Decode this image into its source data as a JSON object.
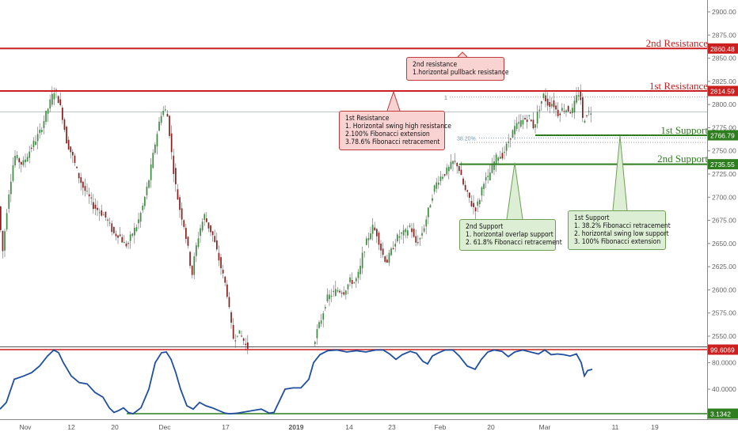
{
  "chart_data": {
    "type": "candlestick",
    "price_axis": {
      "range": [
        2530,
        2915
      ],
      "ticks": [
        2550,
        2575,
        2600,
        2625,
        2650,
        2675,
        2700,
        2725,
        2750,
        2775,
        2800,
        2825,
        2850,
        2875,
        2900
      ],
      "tick_labels": [
        "2550.00",
        "2575.00",
        "2600.00",
        "2625.00",
        "2650.00",
        "2675.00",
        "2700.00",
        "2725.00",
        "2750.00",
        "2775.00",
        "2800.00",
        "2825.00",
        "2850.00",
        "2875.00",
        "2900.00"
      ]
    },
    "oscillator_axis": {
      "range": [
        0,
        105
      ],
      "ticks": [
        40,
        80
      ],
      "tick_labels": [
        "40.0000",
        "80.0000"
      ]
    },
    "x_axis_labels": [
      "Nov",
      "12",
      "20",
      "Dec",
      "17",
      "2019",
      "14",
      "23",
      "Feb",
      "20",
      "Mar",
      "11",
      "19"
    ],
    "levels": [
      {
        "name": "2nd Resistance",
        "value": 2860.48,
        "value_label": "2860.48",
        "color": "#cc1f1f"
      },
      {
        "name": "1st Resistance",
        "value": 2814.59,
        "value_label": "2814.59",
        "color": "#cc1f1f"
      },
      {
        "name": "1st Support",
        "value": 2766.79,
        "value_label": "2766.79",
        "color": "#2e7d1e"
      },
      {
        "name": "2nd Support",
        "value": 2735.55,
        "value_label": "2735.55",
        "color": "#2e7d1e"
      }
    ],
    "oscillator_levels": [
      {
        "value": 99.6069,
        "value_label": "99.6069",
        "color": "#cc1f1f"
      },
      {
        "value": 3.1342,
        "value_label": "3.1342",
        "color": "#2e7d1e"
      }
    ],
    "fib_labels": {
      "fib_382": "38.20%",
      "fib_1": "1"
    },
    "callouts": {
      "second_resistance": [
        "2nd resistance",
        "1.horizontal pullback resistance"
      ],
      "first_resistance": [
        "1st Resistance",
        "1. Horizontal swing high resistance",
        "2.100% Fibonacci extension",
        "3.78.6% Fibonacci retracement"
      ],
      "second_support": [
        "2nd Support",
        "1. horizontal overlap support",
        "2. 61.8% Fibonacci retracement"
      ],
      "first_support": [
        "1st Support",
        "1.  38.2% Fibonacci retracement",
        "2. horizontal swing low support",
        "3. 100% Fibonacci extension"
      ]
    },
    "price_path": [
      [
        0,
        2690
      ],
      [
        5,
        2640
      ],
      [
        12,
        2700
      ],
      [
        20,
        2745
      ],
      [
        30,
        2735
      ],
      [
        42,
        2755
      ],
      [
        52,
        2770
      ],
      [
        60,
        2790
      ],
      [
        66,
        2805
      ],
      [
        70,
        2815
      ],
      [
        74,
        2810
      ],
      [
        80,
        2790
      ],
      [
        86,
        2760
      ],
      [
        93,
        2745
      ],
      [
        100,
        2725
      ],
      [
        107,
        2710
      ],
      [
        114,
        2700
      ],
      [
        120,
        2690
      ],
      [
        127,
        2685
      ],
      [
        134,
        2680
      ],
      [
        140,
        2670
      ],
      [
        146,
        2660
      ],
      [
        152,
        2660
      ],
      [
        158,
        2650
      ],
      [
        163,
        2648
      ],
      [
        168,
        2660
      ],
      [
        175,
        2670
      ],
      [
        182,
        2690
      ],
      [
        190,
        2720
      ],
      [
        198,
        2760
      ],
      [
        205,
        2790
      ],
      [
        210,
        2795
      ],
      [
        214,
        2785
      ],
      [
        218,
        2750
      ],
      [
        223,
        2715
      ],
      [
        228,
        2690
      ],
      [
        234,
        2670
      ],
      [
        240,
        2640
      ],
      [
        244,
        2615
      ],
      [
        248,
        2640
      ],
      [
        254,
        2665
      ],
      [
        260,
        2680
      ],
      [
        264,
        2670
      ],
      [
        270,
        2660
      ],
      [
        276,
        2640
      ],
      [
        282,
        2620
      ],
      [
        288,
        2600
      ],
      [
        293,
        2565
      ],
      [
        297,
        2545
      ],
      [
        302,
        2555
      ],
      [
        308,
        2548
      ],
      [
        313,
        2538
      ]
    ],
    "price_path_2": [
      [
        397,
        2540
      ],
      [
        402,
        2555
      ],
      [
        408,
        2570
      ],
      [
        414,
        2590
      ],
      [
        420,
        2595
      ],
      [
        428,
        2600
      ],
      [
        436,
        2598
      ],
      [
        444,
        2610
      ],
      [
        450,
        2608
      ],
      [
        456,
        2620
      ],
      [
        460,
        2640
      ],
      [
        466,
        2655
      ],
      [
        472,
        2668
      ],
      [
        478,
        2660
      ],
      [
        484,
        2640
      ],
      [
        490,
        2630
      ],
      [
        496,
        2642
      ],
      [
        502,
        2655
      ],
      [
        508,
        2660
      ],
      [
        514,
        2662
      ],
      [
        520,
        2670
      ],
      [
        526,
        2650
      ],
      [
        532,
        2655
      ],
      [
        538,
        2670
      ],
      [
        544,
        2690
      ],
      [
        550,
        2710
      ],
      [
        556,
        2720
      ],
      [
        562,
        2725
      ],
      [
        568,
        2730
      ],
      [
        574,
        2738
      ],
      [
        580,
        2735
      ],
      [
        585,
        2718
      ],
      [
        590,
        2705
      ],
      [
        594,
        2700
      ],
      [
        598,
        2690
      ],
      [
        603,
        2688
      ],
      [
        608,
        2700
      ],
      [
        612,
        2718
      ],
      [
        618,
        2720
      ],
      [
        624,
        2735
      ],
      [
        630,
        2745
      ],
      [
        636,
        2745
      ],
      [
        640,
        2752
      ],
      [
        646,
        2765
      ],
      [
        652,
        2775
      ],
      [
        658,
        2780
      ],
      [
        664,
        2784
      ],
      [
        670,
        2786
      ],
      [
        676,
        2775
      ],
      [
        682,
        2795
      ],
      [
        688,
        2810
      ],
      [
        694,
        2800
      ],
      [
        700,
        2802
      ],
      [
        706,
        2790
      ],
      [
        712,
        2795
      ],
      [
        718,
        2795
      ],
      [
        724,
        2792
      ],
      [
        730,
        2808
      ],
      [
        734,
        2815
      ],
      [
        738,
        2780
      ],
      [
        742,
        2790
      ],
      [
        748,
        2793
      ]
    ],
    "osc_path": [
      [
        0,
        10
      ],
      [
        8,
        20
      ],
      [
        18,
        55
      ],
      [
        30,
        60
      ],
      [
        40,
        65
      ],
      [
        50,
        75
      ],
      [
        60,
        90
      ],
      [
        68,
        99
      ],
      [
        74,
        95
      ],
      [
        80,
        80
      ],
      [
        90,
        60
      ],
      [
        100,
        50
      ],
      [
        110,
        48
      ],
      [
        120,
        35
      ],
      [
        130,
        28
      ],
      [
        138,
        12
      ],
      [
        144,
        5
      ],
      [
        150,
        8
      ],
      [
        156,
        12
      ],
      [
        162,
        5
      ],
      [
        168,
        3
      ],
      [
        178,
        12
      ],
      [
        188,
        40
      ],
      [
        196,
        80
      ],
      [
        204,
        95
      ],
      [
        210,
        96
      ],
      [
        216,
        85
      ],
      [
        222,
        65
      ],
      [
        228,
        40
      ],
      [
        236,
        15
      ],
      [
        244,
        10
      ],
      [
        252,
        20
      ],
      [
        260,
        15
      ],
      [
        268,
        12
      ],
      [
        276,
        8
      ],
      [
        284,
        4
      ],
      [
        290,
        3
      ],
      [
        300,
        4
      ],
      [
        310,
        6
      ],
      [
        320,
        8
      ],
      [
        330,
        10
      ],
      [
        340,
        4
      ],
      [
        346,
        5
      ],
      [
        352,
        20
      ],
      [
        360,
        40
      ],
      [
        370,
        42
      ],
      [
        380,
        42
      ],
      [
        390,
        55
      ],
      [
        396,
        80
      ],
      [
        404,
        92
      ],
      [
        414,
        98
      ],
      [
        426,
        99
      ],
      [
        438,
        96
      ],
      [
        450,
        98
      ],
      [
        462,
        96
      ],
      [
        474,
        99
      ],
      [
        484,
        99
      ],
      [
        492,
        93
      ],
      [
        500,
        85
      ],
      [
        508,
        92
      ],
      [
        518,
        97
      ],
      [
        526,
        94
      ],
      [
        534,
        82
      ],
      [
        540,
        78
      ],
      [
        546,
        90
      ],
      [
        554,
        95
      ],
      [
        562,
        99
      ],
      [
        572,
        99
      ],
      [
        580,
        90
      ],
      [
        590,
        75
      ],
      [
        600,
        70
      ],
      [
        608,
        85
      ],
      [
        616,
        96
      ],
      [
        624,
        99
      ],
      [
        634,
        97
      ],
      [
        642,
        89
      ],
      [
        650,
        96
      ],
      [
        660,
        99
      ],
      [
        670,
        96
      ],
      [
        680,
        93
      ],
      [
        688,
        99
      ],
      [
        696,
        92
      ],
      [
        704,
        93
      ],
      [
        712,
        92
      ],
      [
        720,
        90
      ],
      [
        728,
        93
      ],
      [
        734,
        80
      ],
      [
        738,
        60
      ],
      [
        742,
        68
      ],
      [
        748,
        70
      ]
    ]
  }
}
